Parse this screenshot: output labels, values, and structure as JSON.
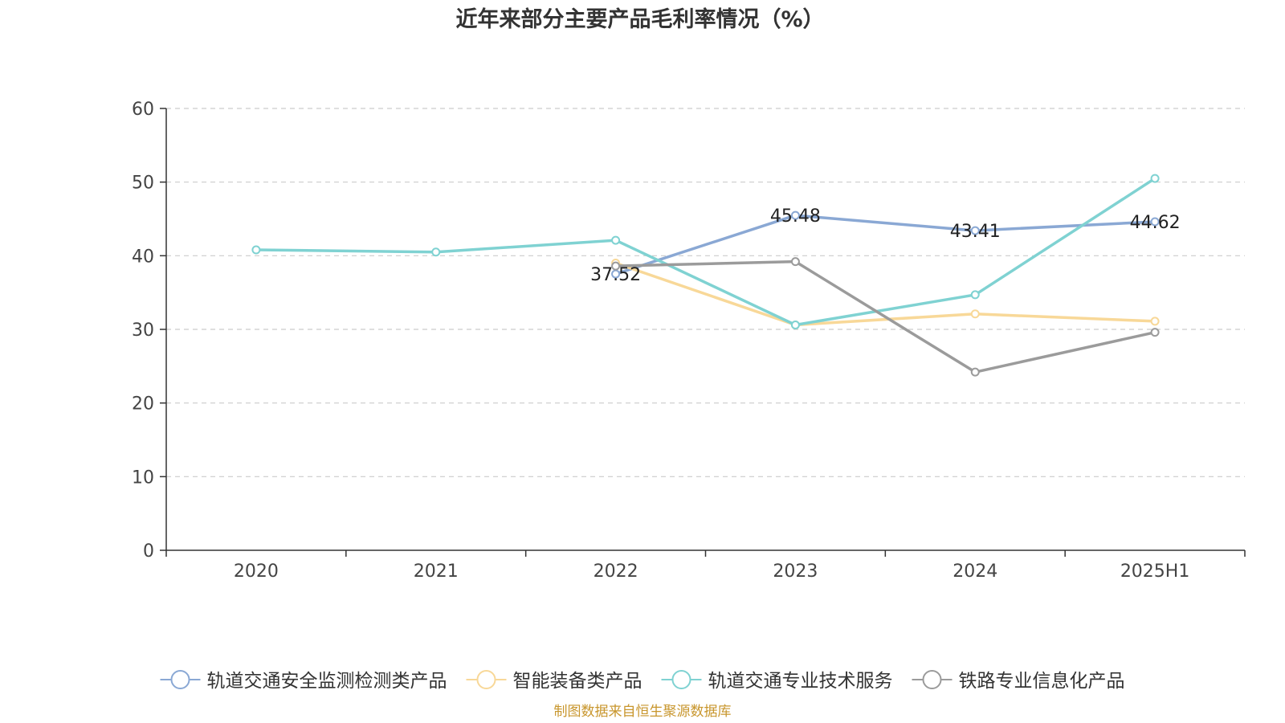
{
  "chart_data": {
    "type": "line",
    "title": "近年来部分主要产品毛利率情况（%）",
    "categories": [
      "2020",
      "2021",
      "2022",
      "2023",
      "2024",
      "2025H1"
    ],
    "ylim": [
      0,
      60
    ],
    "yticks": [
      0,
      10,
      20,
      30,
      40,
      50,
      60
    ],
    "grid": true,
    "legend_position": "bottom",
    "series": [
      {
        "name": "轨道交通安全监测检测类产品",
        "color": "#8aa8d4",
        "values": [
          null,
          null,
          37.52,
          45.48,
          43.41,
          44.62
        ],
        "labels": [
          null,
          null,
          "37.52",
          "45.48",
          "43.41",
          "44.62"
        ]
      },
      {
        "name": "智能装备类产品",
        "color": "#f8d898",
        "values": [
          null,
          null,
          39.0,
          30.6,
          32.1,
          31.1
        ],
        "labels": [
          null,
          null,
          null,
          null,
          null,
          null
        ]
      },
      {
        "name": "轨道交通专业技术服务",
        "color": "#7fd2d2",
        "values": [
          40.8,
          40.5,
          42.1,
          30.6,
          34.7,
          50.5
        ],
        "labels": [
          null,
          null,
          null,
          null,
          null,
          null
        ]
      },
      {
        "name": "铁路专业信息化产品",
        "color": "#9b9b9b",
        "values": [
          null,
          null,
          38.6,
          39.2,
          24.2,
          29.6
        ],
        "labels": [
          null,
          null,
          null,
          null,
          null,
          null
        ]
      }
    ],
    "source": "制图数据来自恒生聚源数据库"
  }
}
